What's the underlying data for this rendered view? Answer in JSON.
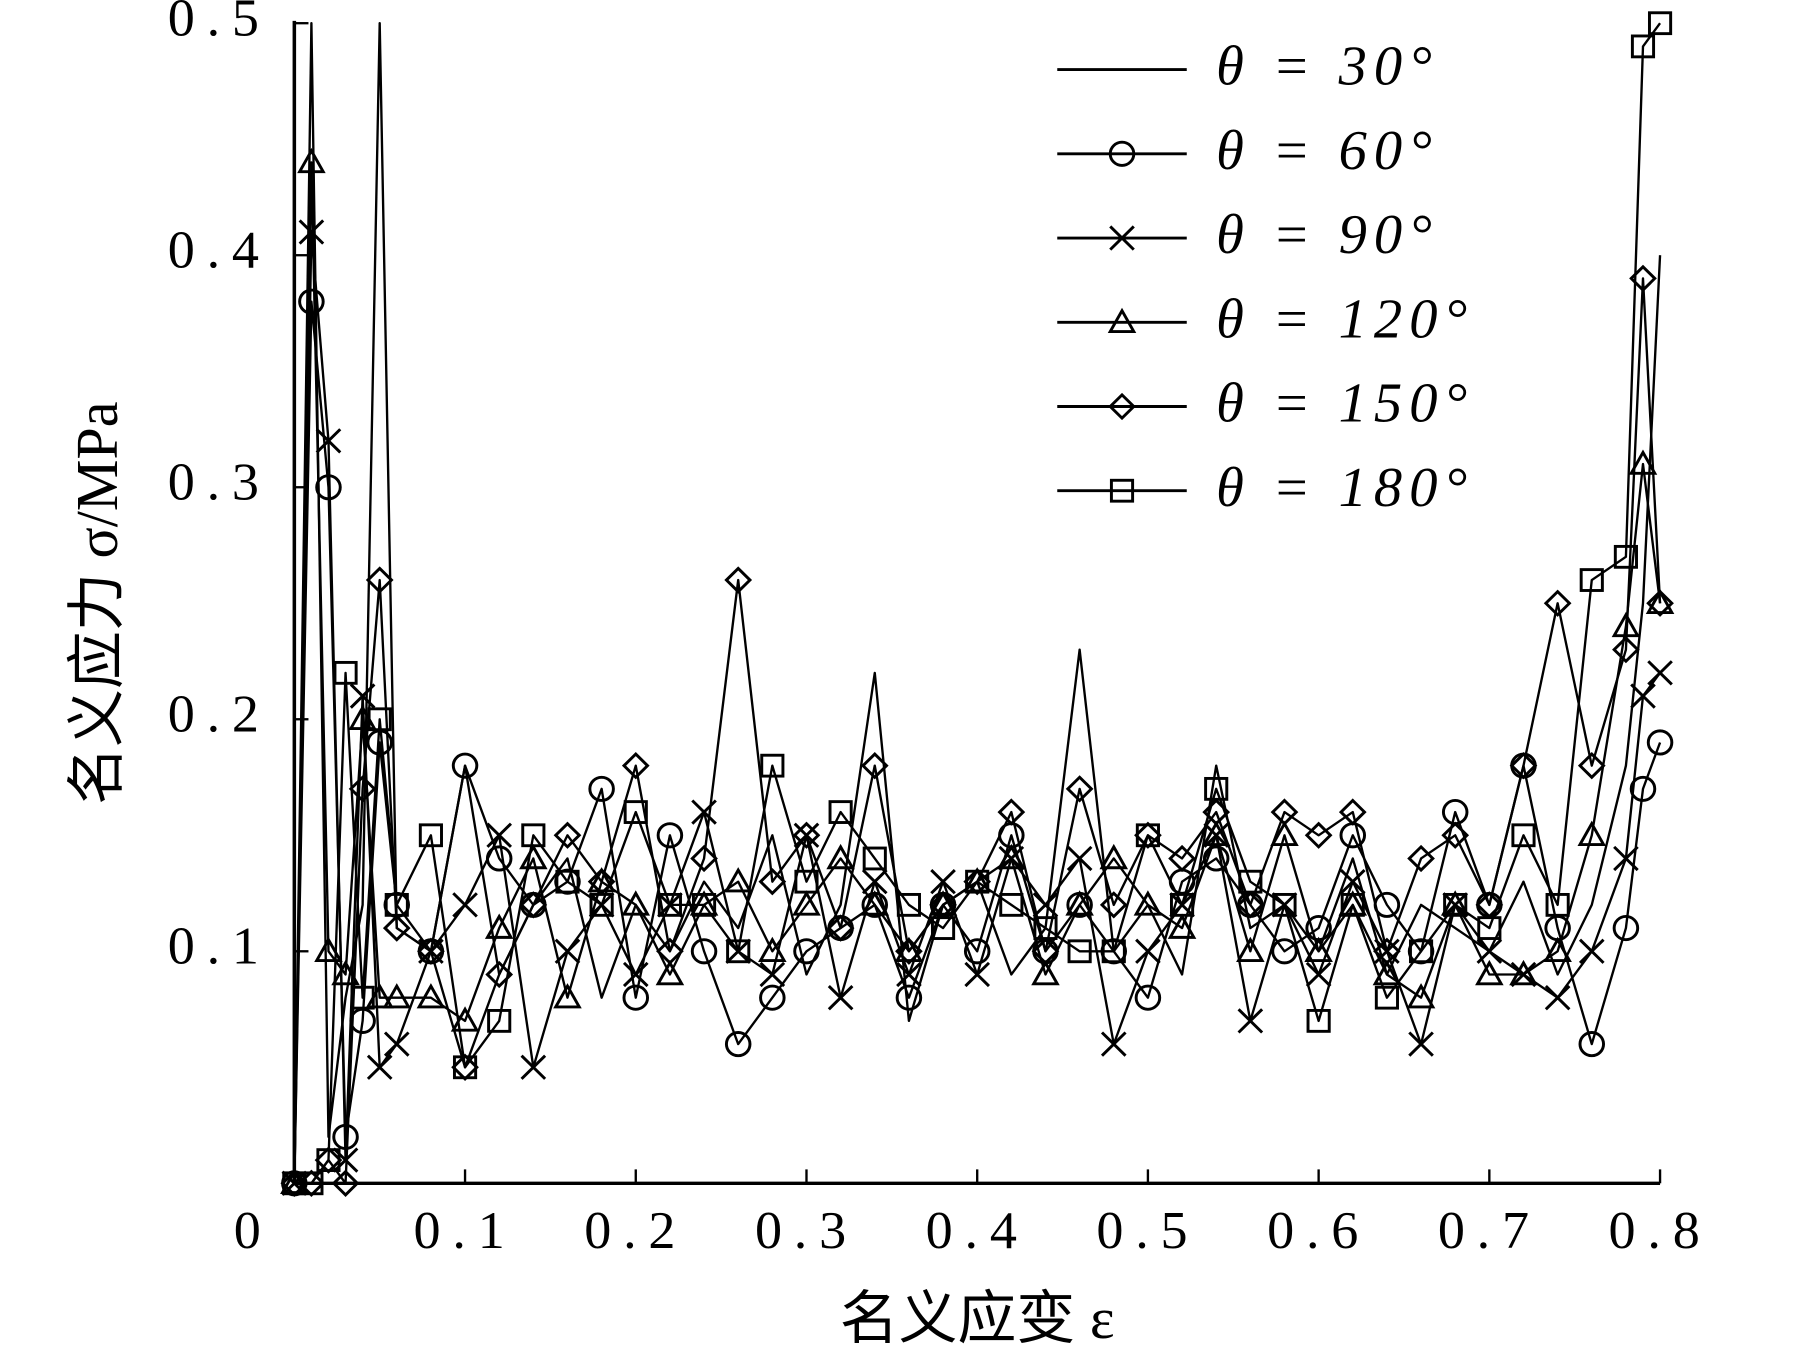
{
  "chart_data": {
    "type": "line",
    "xlabel": "名义应变 ε",
    "ylabel": "名义应力 σ/MPa",
    "xlim": [
      0,
      0.8
    ],
    "ylim": [
      0,
      0.5
    ],
    "xticks": [
      0,
      0.1,
      0.2,
      0.3,
      0.4,
      0.5,
      0.6,
      0.7,
      0.8
    ],
    "yticks": [
      0.1,
      0.2,
      0.3,
      0.4,
      0.5
    ],
    "grid": false,
    "legend": "upper right",
    "x": [
      0,
      0.01,
      0.02,
      0.03,
      0.04,
      0.05,
      0.06,
      0.08,
      0.1,
      0.12,
      0.14,
      0.16,
      0.18,
      0.2,
      0.22,
      0.24,
      0.26,
      0.28,
      0.3,
      0.32,
      0.34,
      0.36,
      0.38,
      0.4,
      0.42,
      0.44,
      0.46,
      0.48,
      0.5,
      0.52,
      0.54,
      0.56,
      0.58,
      0.6,
      0.62,
      0.64,
      0.66,
      0.68,
      0.7,
      0.72,
      0.74,
      0.76,
      0.78,
      0.79,
      0.8
    ],
    "series": [
      {
        "name": "θ = 30°",
        "color": "#000000",
        "marker": "none",
        "values": [
          0,
          0.5,
          0.02,
          0.08,
          0.12,
          0.5,
          0.11,
          0.1,
          0.18,
          0.09,
          0.12,
          0.14,
          0.08,
          0.12,
          0.1,
          0.13,
          0.11,
          0.15,
          0.09,
          0.12,
          0.22,
          0.07,
          0.12,
          0.13,
          0.09,
          0.11,
          0.23,
          0.1,
          0.12,
          0.09,
          0.18,
          0.11,
          0.12,
          0.1,
          0.14,
          0.09,
          0.12,
          0.11,
          0.1,
          0.13,
          0.09,
          0.12,
          0.18,
          0.25,
          0.4
        ]
      },
      {
        "name": "θ = 60°",
        "color": "#000000",
        "marker": "circle",
        "values": [
          0,
          0.38,
          0.3,
          0.02,
          0.07,
          0.19,
          0.12,
          0.1,
          0.18,
          0.14,
          0.12,
          0.13,
          0.17,
          0.08,
          0.15,
          0.1,
          0.06,
          0.08,
          0.1,
          0.11,
          0.12,
          0.08,
          0.12,
          0.1,
          0.15,
          0.1,
          0.12,
          0.1,
          0.08,
          0.13,
          0.14,
          0.12,
          0.1,
          0.11,
          0.15,
          0.12,
          0.1,
          0.16,
          0.12,
          0.18,
          0.11,
          0.06,
          0.11,
          0.17,
          0.19
        ]
      },
      {
        "name": "θ = 90°",
        "color": "#000000",
        "marker": "x",
        "values": [
          0,
          0.41,
          0.32,
          0.01,
          0.21,
          0.05,
          0.06,
          0.1,
          0.12,
          0.15,
          0.05,
          0.1,
          0.12,
          0.09,
          0.12,
          0.16,
          0.1,
          0.09,
          0.15,
          0.08,
          0.13,
          0.09,
          0.13,
          0.09,
          0.14,
          0.12,
          0.14,
          0.06,
          0.1,
          0.12,
          0.15,
          0.07,
          0.12,
          0.09,
          0.13,
          0.1,
          0.06,
          0.12,
          0.1,
          0.09,
          0.08,
          0.1,
          0.14,
          0.21,
          0.22
        ]
      },
      {
        "name": "θ = 120°",
        "color": "#000000",
        "marker": "triangle",
        "values": [
          0,
          0.44,
          0.1,
          0.09,
          0.2,
          0.08,
          0.08,
          0.08,
          0.07,
          0.11,
          0.14,
          0.08,
          0.13,
          0.12,
          0.09,
          0.12,
          0.13,
          0.1,
          0.12,
          0.14,
          0.12,
          0.1,
          0.12,
          0.13,
          0.14,
          0.09,
          0.12,
          0.14,
          0.12,
          0.11,
          0.15,
          0.1,
          0.15,
          0.1,
          0.12,
          0.09,
          0.08,
          0.12,
          0.09,
          0.09,
          0.1,
          0.15,
          0.24,
          0.31,
          0.25
        ]
      },
      {
        "name": "θ = 150°",
        "color": "#000000",
        "marker": "diamond",
        "values": [
          0,
          0,
          0.01,
          0,
          0.17,
          0.26,
          0.11,
          0.1,
          0.05,
          0.09,
          0.12,
          0.15,
          0.13,
          0.18,
          0.1,
          0.14,
          0.26,
          0.13,
          0.15,
          0.11,
          0.18,
          0.1,
          0.12,
          0.13,
          0.16,
          0.1,
          0.17,
          0.12,
          0.15,
          0.14,
          0.16,
          0.12,
          0.16,
          0.15,
          0.16,
          0.1,
          0.14,
          0.15,
          0.12,
          0.18,
          0.25,
          0.18,
          0.23,
          0.39,
          0.25
        ]
      },
      {
        "name": "θ = 180°",
        "color": "#000000",
        "marker": "square",
        "values": [
          0,
          0,
          0.01,
          0.22,
          0.08,
          0.2,
          0.12,
          0.15,
          0.05,
          0.07,
          0.15,
          0.13,
          0.12,
          0.16,
          0.12,
          0.12,
          0.1,
          0.18,
          0.13,
          0.16,
          0.14,
          0.12,
          0.11,
          0.13,
          0.12,
          0.11,
          0.1,
          0.1,
          0.15,
          0.12,
          0.17,
          0.13,
          0.12,
          0.07,
          0.12,
          0.08,
          0.1,
          0.12,
          0.11,
          0.15,
          0.12,
          0.26,
          0.27,
          0.49,
          0.5
        ]
      }
    ]
  }
}
